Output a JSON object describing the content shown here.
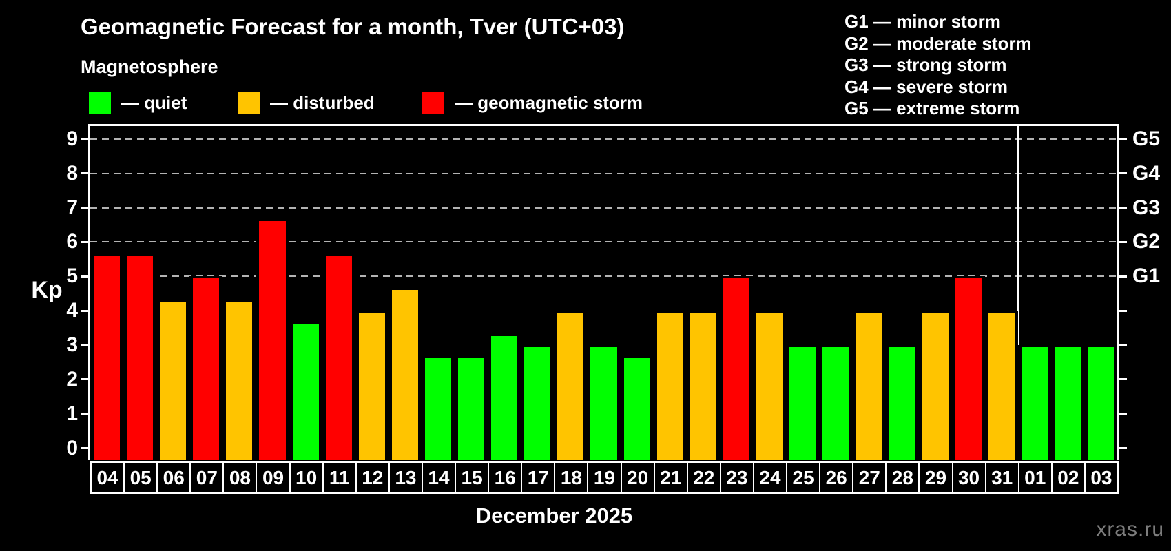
{
  "header": {
    "title": "Geomagnetic Forecast for a month, Tver (UTC+03)",
    "subtitle": "Magnetosphere",
    "legend": [
      {
        "key": "quiet",
        "label": "— quiet",
        "color": "#00ff00"
      },
      {
        "key": "disturbed",
        "label": "— disturbed",
        "color": "#ffc400"
      },
      {
        "key": "storm",
        "label": "— geomagnetic storm",
        "color": "#ff0000"
      }
    ]
  },
  "storm_scale": [
    "G1 — minor storm",
    "G2 — moderate storm",
    "G3 — strong storm",
    "G4 — severe storm",
    "G5 — extreme storm"
  ],
  "chart_data": {
    "type": "bar",
    "title": "Geomagnetic Forecast for a month, Tver (UTC+03)",
    "xlabel": "December 2025",
    "ylabel": "Kp",
    "ylim": [
      0,
      9
    ],
    "yticks": [
      0,
      1,
      2,
      3,
      4,
      5,
      6,
      7,
      8,
      9
    ],
    "gridlines_at": [
      5,
      6,
      7,
      8,
      9
    ],
    "grid": "horizontal dashed lines at storm levels only",
    "legend_position": "top",
    "right_axis_labels": [
      {
        "value": 5,
        "label": "G1"
      },
      {
        "value": 6,
        "label": "G2"
      },
      {
        "value": 7,
        "label": "G3"
      },
      {
        "value": 8,
        "label": "G4"
      },
      {
        "value": 9,
        "label": "G5"
      }
    ],
    "categories": [
      "04",
      "05",
      "06",
      "07",
      "08",
      "09",
      "10",
      "11",
      "12",
      "13",
      "14",
      "15",
      "16",
      "17",
      "18",
      "19",
      "20",
      "21",
      "22",
      "23",
      "24",
      "25",
      "26",
      "27",
      "28",
      "29",
      "30",
      "31",
      "01",
      "02",
      "03"
    ],
    "values": [
      5.67,
      5.67,
      4.33,
      5,
      4.33,
      6.67,
      3.67,
      5.67,
      4,
      4.67,
      2.67,
      2.67,
      3.33,
      3,
      4,
      3,
      2.67,
      4,
      4,
      5,
      4,
      3,
      3,
      4,
      3,
      4,
      5,
      4,
      3,
      3,
      3
    ],
    "statuses": [
      "storm",
      "storm",
      "disturbed",
      "storm",
      "disturbed",
      "storm",
      "quiet",
      "storm",
      "disturbed",
      "disturbed",
      "quiet",
      "quiet",
      "quiet",
      "quiet",
      "disturbed",
      "quiet",
      "quiet",
      "disturbed",
      "disturbed",
      "storm",
      "disturbed",
      "quiet",
      "quiet",
      "disturbed",
      "quiet",
      "disturbed",
      "storm",
      "disturbed",
      "quiet",
      "quiet",
      "quiet"
    ],
    "status_colors": {
      "quiet": "#00ff00",
      "disturbed": "#ffc400",
      "storm": "#ff0000"
    },
    "month_separator_after_index": 27,
    "watermark": "xras.ru"
  }
}
